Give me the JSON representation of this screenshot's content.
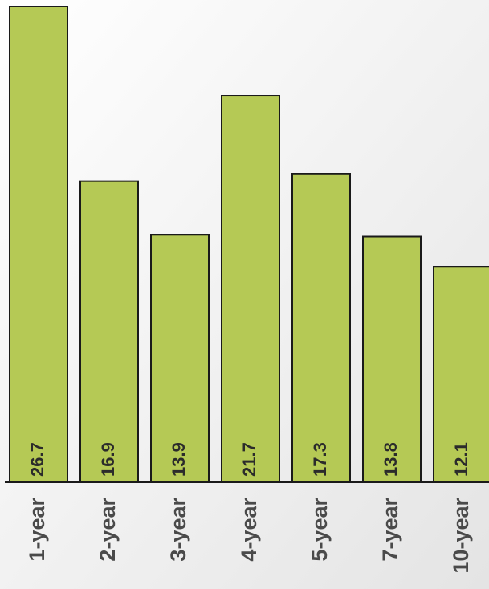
{
  "chart_data": {
    "type": "bar",
    "categories": [
      "1-year",
      "2-year",
      "3-year",
      "4-year",
      "5-year",
      "7-year",
      "10-year"
    ],
    "values": [
      26.7,
      16.9,
      13.9,
      21.7,
      17.3,
      13.8,
      12.1
    ],
    "color": "#b5c955"
  }
}
